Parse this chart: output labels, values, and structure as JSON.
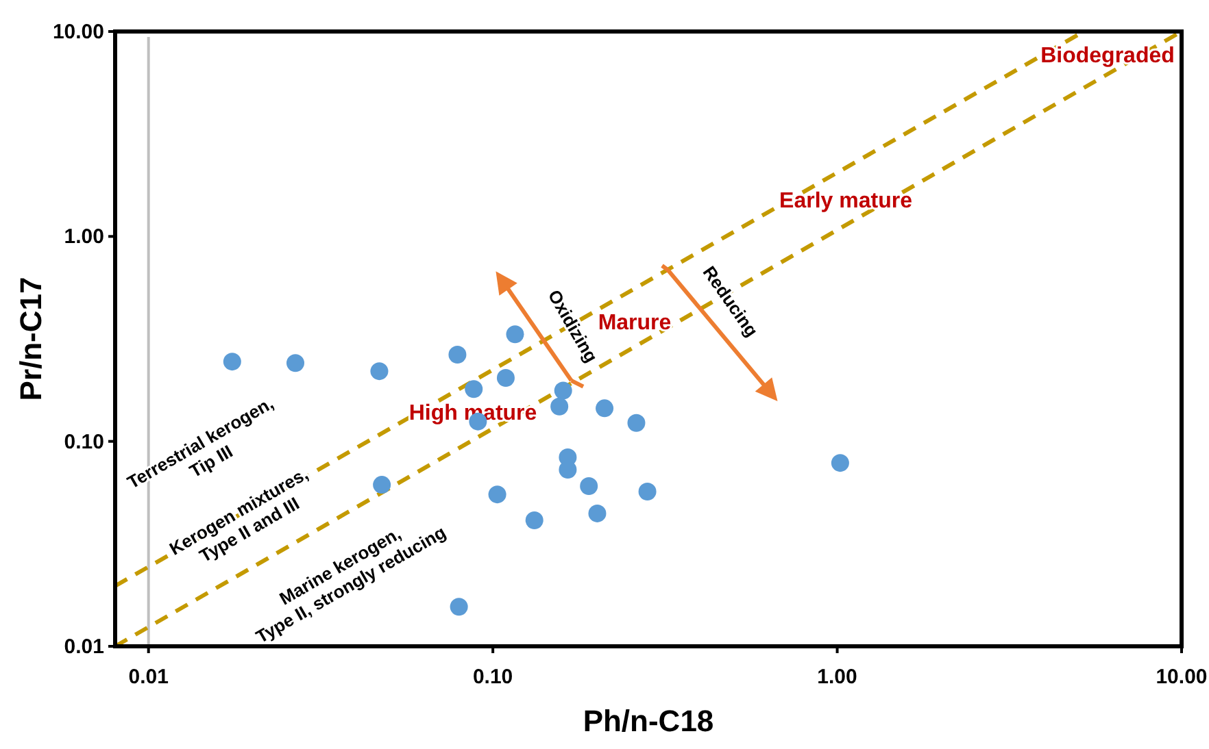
{
  "chart_data": {
    "type": "scatter",
    "xlabel": "Ph/n-C18",
    "ylabel": "Pr/n-C17",
    "log": "xy",
    "grid": false,
    "marker": "circle",
    "xlim": [
      0.008,
      10
    ],
    "ylim": [
      0.01,
      10
    ],
    "xticks": [
      {
        "value": 0.01,
        "label": "0.01"
      },
      {
        "value": 0.1,
        "label": "0.10"
      },
      {
        "value": 1,
        "label": "1.00"
      },
      {
        "value": 10,
        "label": "10.00"
      }
    ],
    "yticks": [
      {
        "value": 0.01,
        "label": "0.01"
      },
      {
        "value": 0.1,
        "label": "0.10"
      },
      {
        "value": 1,
        "label": "1.00"
      },
      {
        "value": 10,
        "label": "10.00"
      }
    ],
    "series": [
      {
        "color": "#5b9bd5",
        "x": [
          0.0175,
          0.0267,
          0.0468,
          0.0789,
          0.116,
          0.088,
          0.109,
          0.16,
          0.156,
          0.211,
          0.261,
          0.0905,
          0.165,
          0.165,
          0.19,
          0.281,
          0.0476,
          0.103,
          0.132,
          0.201,
          0.0797,
          1.02
        ],
        "values": [
          0.245,
          0.241,
          0.22,
          0.265,
          0.333,
          0.18,
          0.204,
          0.177,
          0.148,
          0.145,
          0.123,
          0.125,
          0.0836,
          0.0728,
          0.0605,
          0.0569,
          0.0614,
          0.0551,
          0.0412,
          0.0445,
          0.0156,
          0.0785
        ]
      },
      {
        "type": "line",
        "color": "#c49a00",
        "line_style": "dashed",
        "marker": "none",
        "x": [
          0.008,
          5.2
        ],
        "values": [
          0.0197,
          10
        ]
      },
      {
        "type": "line",
        "color": "#c49a00",
        "line_style": "dashed",
        "marker": "none",
        "x": [
          0.008,
          10
        ],
        "values": [
          0.01,
          10
        ]
      }
    ],
    "ref_lines": [
      {
        "axis": "x",
        "value": 0.01,
        "color": "#bfbfbf"
      }
    ],
    "annotations": [
      "Biodegraded",
      "Early mature",
      "Marure",
      "High mature",
      "Oxidizing",
      "Reducing",
      "Terrestrial kerogen,\nTip III",
      "Kerogen mixtures,\nType II and III",
      "Marine kerogen,\nType II, strongly reducing"
    ]
  }
}
